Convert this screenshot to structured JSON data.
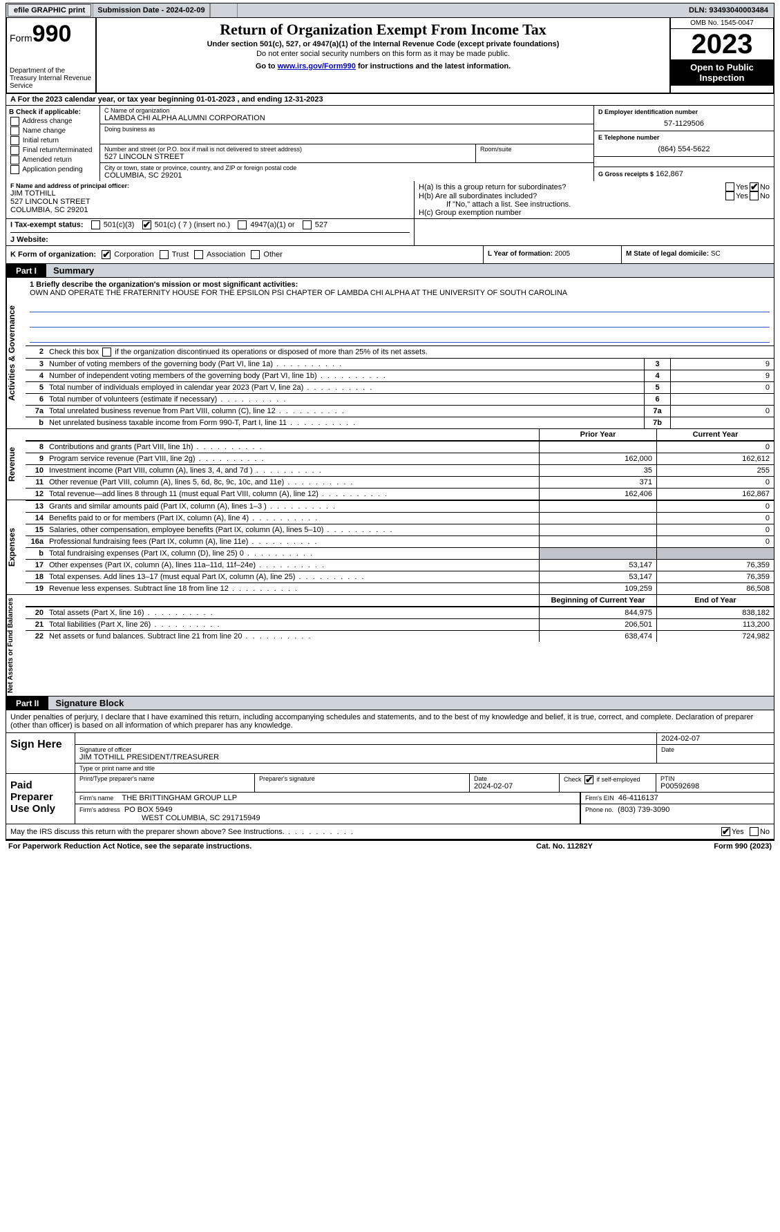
{
  "topbar": {
    "efile_btn": "efile GRAPHIC print",
    "sub_label": "Submission Date - 2024-02-09",
    "dln": "DLN: 93493040003484"
  },
  "header": {
    "form_word": "Form",
    "form_num": "990",
    "dept": "Department of the Treasury\nInternal Revenue Service",
    "title": "Return of Organization Exempt From Income Tax",
    "sub1": "Under section 501(c), 527, or 4947(a)(1) of the Internal Revenue Code (except private foundations)",
    "sub2": "Do not enter social security numbers on this form as it may be made public.",
    "sub3_pre": "Go to ",
    "sub3_link": "www.irs.gov/Form990",
    "sub3_post": " for instructions and the latest information.",
    "omb": "OMB No. 1545-0047",
    "year": "2023",
    "open": "Open to Public Inspection"
  },
  "A": {
    "text": "A   For the 2023 calendar year, or tax year beginning 01-01-2023     , and ending 12-31-2023"
  },
  "B": {
    "label": "B Check if applicable:",
    "opts": [
      "Address change",
      "Name change",
      "Initial return",
      "Final return/terminated",
      "Amended return",
      "Application pending"
    ]
  },
  "C": {
    "name_lbl": "C Name of organization",
    "name": "LAMBDA CHI ALPHA ALUMNI CORPORATION",
    "dba_lbl": "Doing business as",
    "addr_lbl": "Number and street (or P.O. box if mail is not delivered to street address)",
    "addr": "527 LINCOLN STREET",
    "room_lbl": "Room/suite",
    "city_lbl": "City or town, state or province, country, and ZIP or foreign postal code",
    "city": "COLUMBIA, SC  29201"
  },
  "D": {
    "lbl": "D Employer identification number",
    "val": "57-1129506"
  },
  "E": {
    "lbl": "E Telephone number",
    "val": "(864) 554-5622"
  },
  "G": {
    "lbl": "G Gross receipts $",
    "val": "162,867"
  },
  "F": {
    "lbl": "F  Name and address of principal officer:",
    "name": "JIM TOTHILL",
    "addr1": "527 LINCOLN STREET",
    "addr2": "COLUMBIA, SC  29201"
  },
  "H": {
    "a": "H(a)  Is this a group return for subordinates?",
    "b": "H(b)  Are all subordinates included?",
    "b_note": "If \"No,\" attach a list. See instructions.",
    "c": "H(c)  Group exemption number",
    "yes": "Yes",
    "no": "No"
  },
  "I": {
    "lbl": "I    Tax-exempt status:",
    "o1": "501(c)(3)",
    "o2": "501(c) ( 7 ) (insert no.)",
    "o3": "4947(a)(1) or",
    "o4": "527"
  },
  "J": {
    "lbl": "J   Website:"
  },
  "K": {
    "lbl": "K Form of organization:",
    "o1": "Corporation",
    "o2": "Trust",
    "o3": "Association",
    "o4": "Other"
  },
  "L": {
    "lbl": "L Year of formation:",
    "val": "2005"
  },
  "M": {
    "lbl": "M State of legal domicile:",
    "val": "SC"
  },
  "partI": {
    "label": "Part I",
    "name": "Summary",
    "side1": "Activities & Governance",
    "side2": "Revenue",
    "side3": "Expenses",
    "side4": "Net Assets or Fund Balances",
    "q1_lbl": "1  Briefly describe the organization's mission or most significant activities:",
    "q1_val": "OWN AND OPERATE THE FRATERNITY HOUSE FOR THE EPSILON PSI CHAPTER OF LAMBDA CHI ALPHA AT THE UNIVERSITY OF SOUTH CAROLINA",
    "q2": "Check this box       if the organization discontinued its operations or disposed of more than 25% of its net assets.",
    "rows_gov": [
      {
        "n": "3",
        "t": "Number of voting members of the governing body (Part VI, line 1a)",
        "box": "3",
        "v": "9"
      },
      {
        "n": "4",
        "t": "Number of independent voting members of the governing body (Part VI, line 1b)",
        "box": "4",
        "v": "9"
      },
      {
        "n": "5",
        "t": "Total number of individuals employed in calendar year 2023 (Part V, line 2a)",
        "box": "5",
        "v": "0"
      },
      {
        "n": "6",
        "t": "Total number of volunteers (estimate if necessary)",
        "box": "6",
        "v": ""
      },
      {
        "n": "7a",
        "t": "Total unrelated business revenue from Part VIII, column (C), line 12",
        "box": "7a",
        "v": "0"
      },
      {
        "n": "b",
        "t": "Net unrelated business taxable income from Form 990-T, Part I, line 11",
        "box": "7b",
        "v": ""
      }
    ],
    "col_prior": "Prior Year",
    "col_curr": "Current Year",
    "rows_rev": [
      {
        "n": "8",
        "t": "Contributions and grants (Part VIII, line 1h)",
        "py": "",
        "cy": "0"
      },
      {
        "n": "9",
        "t": "Program service revenue (Part VIII, line 2g)",
        "py": "162,000",
        "cy": "162,612"
      },
      {
        "n": "10",
        "t": "Investment income (Part VIII, column (A), lines 3, 4, and 7d )",
        "py": "35",
        "cy": "255"
      },
      {
        "n": "11",
        "t": "Other revenue (Part VIII, column (A), lines 5, 6d, 8c, 9c, 10c, and 11e)",
        "py": "371",
        "cy": "0"
      },
      {
        "n": "12",
        "t": "Total revenue—add lines 8 through 11 (must equal Part VIII, column (A), line 12)",
        "py": "162,406",
        "cy": "162,867"
      }
    ],
    "rows_exp": [
      {
        "n": "13",
        "t": "Grants and similar amounts paid (Part IX, column (A), lines 1–3 )",
        "py": "",
        "cy": "0"
      },
      {
        "n": "14",
        "t": "Benefits paid to or for members (Part IX, column (A), line 4)",
        "py": "",
        "cy": "0"
      },
      {
        "n": "15",
        "t": "Salaries, other compensation, employee benefits (Part IX, column (A), lines 5–10)",
        "py": "",
        "cy": "0"
      },
      {
        "n": "16a",
        "t": "Professional fundraising fees (Part IX, column (A), line 11e)",
        "py": "",
        "cy": "0"
      },
      {
        "n": "b",
        "t": "Total fundraising expenses (Part IX, column (D), line 25) 0",
        "py": "shade",
        "cy": "shade"
      },
      {
        "n": "17",
        "t": "Other expenses (Part IX, column (A), lines 11a–11d, 11f–24e)",
        "py": "53,147",
        "cy": "76,359"
      },
      {
        "n": "18",
        "t": "Total expenses. Add lines 13–17 (must equal Part IX, column (A), line 25)",
        "py": "53,147",
        "cy": "76,359"
      },
      {
        "n": "19",
        "t": "Revenue less expenses. Subtract line 18 from line 12",
        "py": "109,259",
        "cy": "86,508"
      }
    ],
    "col_beg": "Beginning of Current Year",
    "col_end": "End of Year",
    "rows_net": [
      {
        "n": "20",
        "t": "Total assets (Part X, line 16)",
        "py": "844,975",
        "cy": "838,182"
      },
      {
        "n": "21",
        "t": "Total liabilities (Part X, line 26)",
        "py": "206,501",
        "cy": "113,200"
      },
      {
        "n": "22",
        "t": "Net assets or fund balances. Subtract line 21 from line 20",
        "py": "638,474",
        "cy": "724,982"
      }
    ]
  },
  "partII": {
    "label": "Part II",
    "name": "Signature Block",
    "perjury": "Under penalties of perjury, I declare that I have examined this return, including accompanying schedules and statements, and to the best of my knowledge and belief, it is true, correct, and complete. Declaration of preparer (other than officer) is based on all information of which preparer has any knowledge.",
    "sign_here": "Sign Here",
    "sig_date": "2024-02-07",
    "sig_lbl": "Signature of officer",
    "sig_name": "JIM TOTHILL PRESIDENT/TREASURER",
    "sig_name_lbl": "Type or print name and title",
    "date_lbl": "Date",
    "paid": "Paid Preparer Use Only",
    "p_name_lbl": "Print/Type preparer's name",
    "p_sig_lbl": "Preparer's signature",
    "p_date_lbl": "Date",
    "p_date": "2024-02-07",
    "p_check_lbl": "Check        if self-employed",
    "p_ptin_lbl": "PTIN",
    "p_ptin": "P00592698",
    "firm_name_lbl": "Firm's name",
    "firm_name": "THE BRITTINGHAM GROUP LLP",
    "firm_ein_lbl": "Firm's EIN",
    "firm_ein": "46-4116137",
    "firm_addr_lbl": "Firm's address",
    "firm_addr1": "PO BOX 5949",
    "firm_addr2": "WEST COLUMBIA, SC  291715949",
    "firm_phone_lbl": "Phone no.",
    "firm_phone": "(803) 739-3090",
    "discuss": "May the IRS discuss this return with the preparer shown above? See Instructions.",
    "yes": "Yes",
    "no": "No"
  },
  "footer": {
    "l": "For Paperwork Reduction Act Notice, see the separate instructions.",
    "m": "Cat. No. 11282Y",
    "r": "Form 990 (2023)"
  }
}
